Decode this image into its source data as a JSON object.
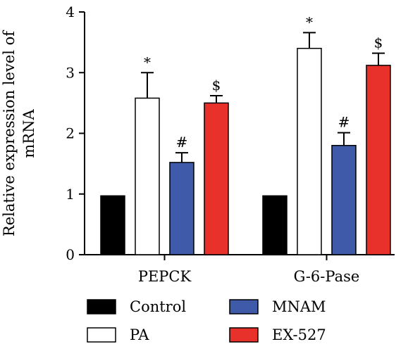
{
  "chart_data": {
    "type": "bar",
    "ylabel": "Relative expression level of mRNA",
    "ylabel_lines": [
      "Relative expression level of",
      "mRNA"
    ],
    "xlabel": "",
    "ylim": [
      0,
      4
    ],
    "yticks": [
      0,
      1,
      2,
      3,
      4
    ],
    "categories": [
      "PEPCK",
      "G-6-Pase"
    ],
    "series": [
      {
        "name": "Control",
        "color": "#000000",
        "values": [
          0.97,
          0.97
        ],
        "errors": [
          0,
          0
        ],
        "marks": [
          "",
          ""
        ]
      },
      {
        "name": "PA",
        "color": "#ffffff",
        "values": [
          2.58,
          3.4
        ],
        "errors": [
          0.42,
          0.26
        ],
        "marks": [
          "*",
          "*"
        ]
      },
      {
        "name": "MNAM",
        "color": "#3e5aa8",
        "values": [
          1.52,
          1.8
        ],
        "errors": [
          0.16,
          0.21
        ],
        "marks": [
          "#",
          "#"
        ]
      },
      {
        "name": "EX-527",
        "color": "#e8312b",
        "values": [
          2.5,
          3.12
        ],
        "errors": [
          0.12,
          0.2
        ],
        "marks": [
          "$",
          "$"
        ]
      }
    ],
    "legend_position": "bottom",
    "grid": false
  }
}
